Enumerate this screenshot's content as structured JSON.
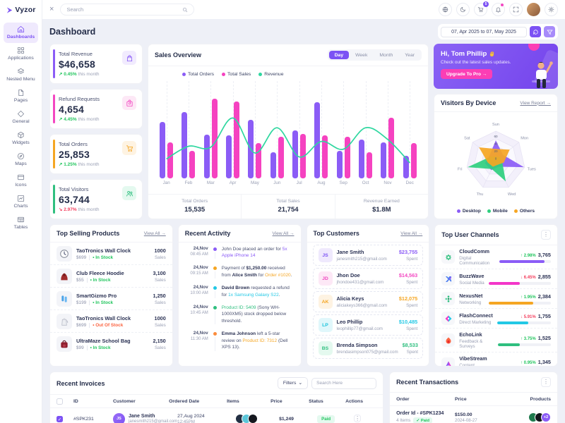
{
  "brand": {
    "name": "Vyzor"
  },
  "topbar": {
    "search_placeholder": "Search",
    "cart_badge": "5"
  },
  "sidebar": {
    "items": [
      {
        "label": "Dashboards",
        "icon": "home-icon",
        "active": true
      },
      {
        "label": "Applications",
        "icon": "grid-icon"
      },
      {
        "label": "Nested Menu",
        "icon": "layers-icon"
      },
      {
        "label": "Pages",
        "icon": "file-icon"
      },
      {
        "label": "General",
        "icon": "diamond-icon"
      },
      {
        "label": "Widgets",
        "icon": "box-icon"
      },
      {
        "label": "Maps",
        "icon": "compass-icon"
      },
      {
        "label": "Icons",
        "icon": "window-icon"
      },
      {
        "label": "Charts",
        "icon": "chart-icon"
      },
      {
        "label": "Tables",
        "icon": "table-icon"
      }
    ]
  },
  "page": {
    "title": "Dashboard",
    "date_range": "07, Apr 2025 to 07, May 2025"
  },
  "stats": [
    {
      "label": "Total Revenue",
      "value": "$46,658",
      "delta": "0.45%",
      "delta_dir": "up",
      "delta_suffix": "this month",
      "accent": "#8b5cf6",
      "icon": "bag-icon"
    },
    {
      "label": "Refund Requests",
      "value": "4,654",
      "delta": "4.45%",
      "delta_dir": "up",
      "delta_suffix": "this month",
      "accent": "#f347c1",
      "icon": "refund-box-icon"
    },
    {
      "label": "Total Orders",
      "value": "25,853",
      "delta": "1.25%",
      "delta_dir": "up",
      "delta_suffix": "this month",
      "accent": "#f5a623",
      "icon": "cart-icon"
    },
    {
      "label": "Total Visitors",
      "value": "63,744",
      "delta": "2.97%",
      "delta_dir": "down",
      "delta_suffix": "this month",
      "accent": "#2fbf7f",
      "icon": "users-icon"
    }
  ],
  "sales_overview": {
    "title": "Sales Overview",
    "tabs": [
      "Day",
      "Week",
      "Month",
      "Year"
    ],
    "active_tab": "Day",
    "chart_data": {
      "type": "bar",
      "categories": [
        "Jan",
        "Feb",
        "Mar",
        "Apr",
        "May",
        "Jun",
        "Jul",
        "Aug",
        "Sep",
        "Oct",
        "Nov",
        "Dec"
      ],
      "series": [
        {
          "name": "Total Orders",
          "type": "bar",
          "color": "#8b5cf6",
          "values": [
            58,
            68,
            45,
            44,
            60,
            27,
            49,
            78,
            28,
            40,
            37,
            23
          ]
        },
        {
          "name": "Total Sales",
          "type": "bar",
          "color": "#f542c0",
          "values": [
            37,
            28,
            82,
            79,
            36,
            43,
            46,
            44,
            43,
            27,
            62,
            36
          ]
        },
        {
          "name": "Revenue",
          "type": "line",
          "color": "#2fd7a0",
          "values": [
            20,
            33,
            32,
            62,
            26,
            52,
            22,
            38,
            30,
            52,
            40,
            16
          ]
        }
      ],
      "ylim": [
        0,
        100
      ],
      "grid": "dashed-vertical",
      "legend_position": "top-left"
    },
    "footer": [
      {
        "label": "Total Orders",
        "value": "15,535"
      },
      {
        "label": "Total Sales",
        "value": "21,754"
      },
      {
        "label": "Revenue Earned",
        "value": "$1.8M"
      }
    ]
  },
  "greeting": {
    "title": "Hi, Tom Phillip",
    "subtitle": "Check out the latest sales updates.",
    "button": "Upgrade To Pro →"
  },
  "visitors": {
    "title": "Visitors By Device",
    "link": "View Report →",
    "legend": [
      "Desktop",
      "Mobile",
      "Others"
    ],
    "chart_data": {
      "type": "radar",
      "axes": [
        "Sun",
        "Mon",
        "Tues",
        "Wed",
        "Thu",
        "Fri",
        "Sat"
      ],
      "ticks": [
        0,
        20,
        40,
        60
      ],
      "max": 80,
      "series": [
        {
          "name": "Desktop",
          "color": "#8b5cf6",
          "values": [
            55,
            25,
            78,
            18,
            28,
            30,
            22
          ]
        },
        {
          "name": "Mobile",
          "color": "#2fcf7f",
          "values": [
            12,
            15,
            18,
            62,
            25,
            78,
            18
          ]
        },
        {
          "name": "Others",
          "color": "#f6a623",
          "values": [
            32,
            48,
            22,
            12,
            18,
            22,
            58
          ]
        }
      ]
    }
  },
  "top_products": {
    "title": "Top Selling Products",
    "link": "View All →",
    "sales_label": "Sales",
    "items": [
      {
        "name": "TaoTronics Wall Clock",
        "price": "$699",
        "stock": "In Stock",
        "stock_state": "in",
        "sales": "1000",
        "thumb": "clock"
      },
      {
        "name": "Club Fleece Hoodie",
        "price": "$55",
        "stock": "In Stock",
        "stock_state": "in",
        "sales": "3,100",
        "thumb": "hoodie"
      },
      {
        "name": "SmartGizmo Pro",
        "price": "$199",
        "stock": "In Stock",
        "stock_state": "in",
        "sales": "1,250",
        "thumb": "earbuds"
      },
      {
        "name": "TaoTronics Wall Clock",
        "price": "$699",
        "stock": "Out Of Stock",
        "stock_state": "out",
        "sales": "1000",
        "thumb": "kettle"
      },
      {
        "name": "UltraMaze School Bag",
        "price": "$99",
        "stock": "In Stock",
        "stock_state": "in",
        "sales": "2,150",
        "thumb": "bag"
      }
    ]
  },
  "recent_activity": {
    "title": "Recent Activity",
    "link": "View All →",
    "items": [
      {
        "date": "24,Nov",
        "time": "08:45 AM",
        "dot": "#8b5cf6",
        "parts": [
          {
            "t": "John Doe placed an order for "
          },
          {
            "t": "5x Apple iPhone 14",
            "s": "purple"
          }
        ]
      },
      {
        "date": "24,Nov",
        "time": "09:15 AM",
        "dot": "#f5a623",
        "parts": [
          {
            "t": "Payment of "
          },
          {
            "t": "$1,250.00",
            "s": "bold"
          },
          {
            "t": " received from "
          },
          {
            "t": "Alice Smith",
            "s": "bold"
          },
          {
            "t": " for "
          },
          {
            "t": "Order #1020",
            "s": "orange"
          },
          {
            "t": "."
          }
        ]
      },
      {
        "date": "24,Nov",
        "time": "10:00 AM",
        "dot": "#22c8e5",
        "parts": [
          {
            "t": "David Brown",
            "s": "bold"
          },
          {
            "t": " requested a refund for "
          },
          {
            "t": "1x Samsung Galaxy S22",
            "s": "cyan"
          },
          {
            "t": "."
          }
        ]
      },
      {
        "date": "24,Nov",
        "time": "10:45 AM",
        "dot": "#2fbf7f",
        "parts": [
          {
            "t": "Product ID: 5409",
            "s": "green"
          },
          {
            "t": " (Sony WH-1000XM5) stock dropped below threshold."
          }
        ]
      },
      {
        "date": "24,Nov",
        "time": "11:30 AM",
        "dot": "#fb8c3c",
        "parts": [
          {
            "t": "Emma Johnson",
            "s": "bold"
          },
          {
            "t": " left a 5-star review on "
          },
          {
            "t": "Product ID: 7312",
            "s": "orange"
          },
          {
            "t": " (Dell XPS 13)."
          }
        ]
      }
    ]
  },
  "top_customers": {
    "title": "Top Customers",
    "link": "View All →",
    "spent_label": "Spent",
    "items": [
      {
        "initials": "JS",
        "name": "Jane Smith",
        "email": "janesmith215@gmail.com",
        "amount": "$23,755",
        "amount_color": "#8b5cf6"
      },
      {
        "initials": "JD",
        "name": "Jhon Doe",
        "email": "jhondoe431@gmail.com",
        "amount": "$14,563",
        "amount_color": "#f347c1"
      },
      {
        "initials": "AK",
        "name": "Alicia Keys",
        "email": "aliciakeys366@gmail.com",
        "amount": "$12,075",
        "amount_color": "#f5a623"
      },
      {
        "initials": "LP",
        "name": "Leo Phillip",
        "email": "leophillip77@gmail.com",
        "amount": "$10,485",
        "amount_color": "#22c8e5"
      },
      {
        "initials": "BS",
        "name": "Brenda Simpson",
        "email": "brendasimpson075@gmail.com",
        "amount": "$8,533",
        "amount_color": "#2fbf7f"
      }
    ]
  },
  "top_channels": {
    "title": "Top User Channels",
    "items": [
      {
        "name": "CloudComm",
        "category": "Digital Communication",
        "delta": "2.98%",
        "delta_dir": "up",
        "value": "3,765",
        "bar_color": "#8b5cf6",
        "bar_pct": 88
      },
      {
        "name": "BuzzWave",
        "category": "Social Media",
        "delta": "6.45%",
        "delta_dir": "down",
        "value": "2,855",
        "bar_color": "#f336c9",
        "bar_pct": 50
      },
      {
        "name": "NexusNet",
        "category": "Networking",
        "delta": "1.95%",
        "delta_dir": "up",
        "value": "2,384",
        "bar_color": "#f5a623",
        "bar_pct": 72
      },
      {
        "name": "FlashConnect",
        "category": "Direct Marketing",
        "delta": "5.91%",
        "delta_dir": "down",
        "value": "1,755",
        "bar_color": "#22c8e5",
        "bar_pct": 58
      },
      {
        "name": "EchoLink",
        "category": "Feedback & Surveys",
        "delta": "3.75%",
        "delta_dir": "up",
        "value": "1,525",
        "bar_color": "#2fbf7f",
        "bar_pct": 42
      },
      {
        "name": "VibeStream",
        "category": "Content Distribution",
        "delta": "0.95%",
        "delta_dir": "up",
        "value": "1,345",
        "bar_color": "#fb6340",
        "bar_pct": 32
      }
    ]
  },
  "recent_invoices": {
    "title": "Recent Invoices",
    "filters_label": "Filters",
    "search_placeholder": "Search Here",
    "columns": [
      "ID",
      "Customer",
      "Ordered Date",
      "Items",
      "Price",
      "Status",
      "Actions"
    ],
    "rows": [
      {
        "id": "#SPK231",
        "customer": "Jane Smith",
        "email": "janesmith215@gmail.com",
        "initials": "JS",
        "date": "27,Aug 2024",
        "time": "12:45PM",
        "price": "$1,249",
        "status": "Paid"
      }
    ]
  },
  "recent_transactions": {
    "title": "Recent Transactions",
    "columns": [
      "Order",
      "Price",
      "Products"
    ],
    "rows": [
      {
        "order_id": "Order Id - #SPK1234",
        "items": "4 Items",
        "status": "✓ Paid",
        "price": "$150.00",
        "date": "2024-08-27",
        "extra": "+2"
      }
    ]
  }
}
